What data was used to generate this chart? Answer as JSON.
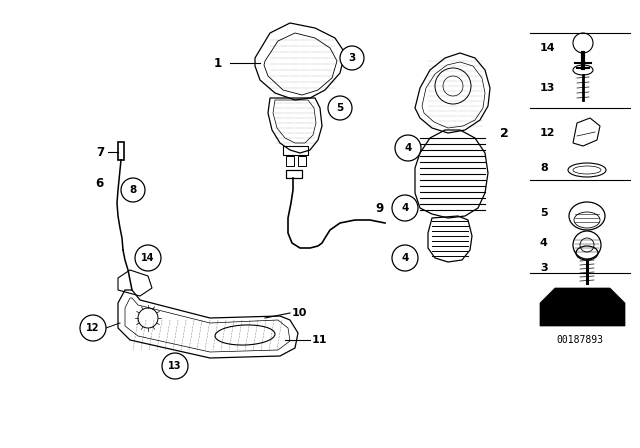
{
  "background_color": "#ffffff",
  "image_code": "00187893",
  "figsize": [
    6.4,
    4.48
  ],
  "dpi": 100
}
